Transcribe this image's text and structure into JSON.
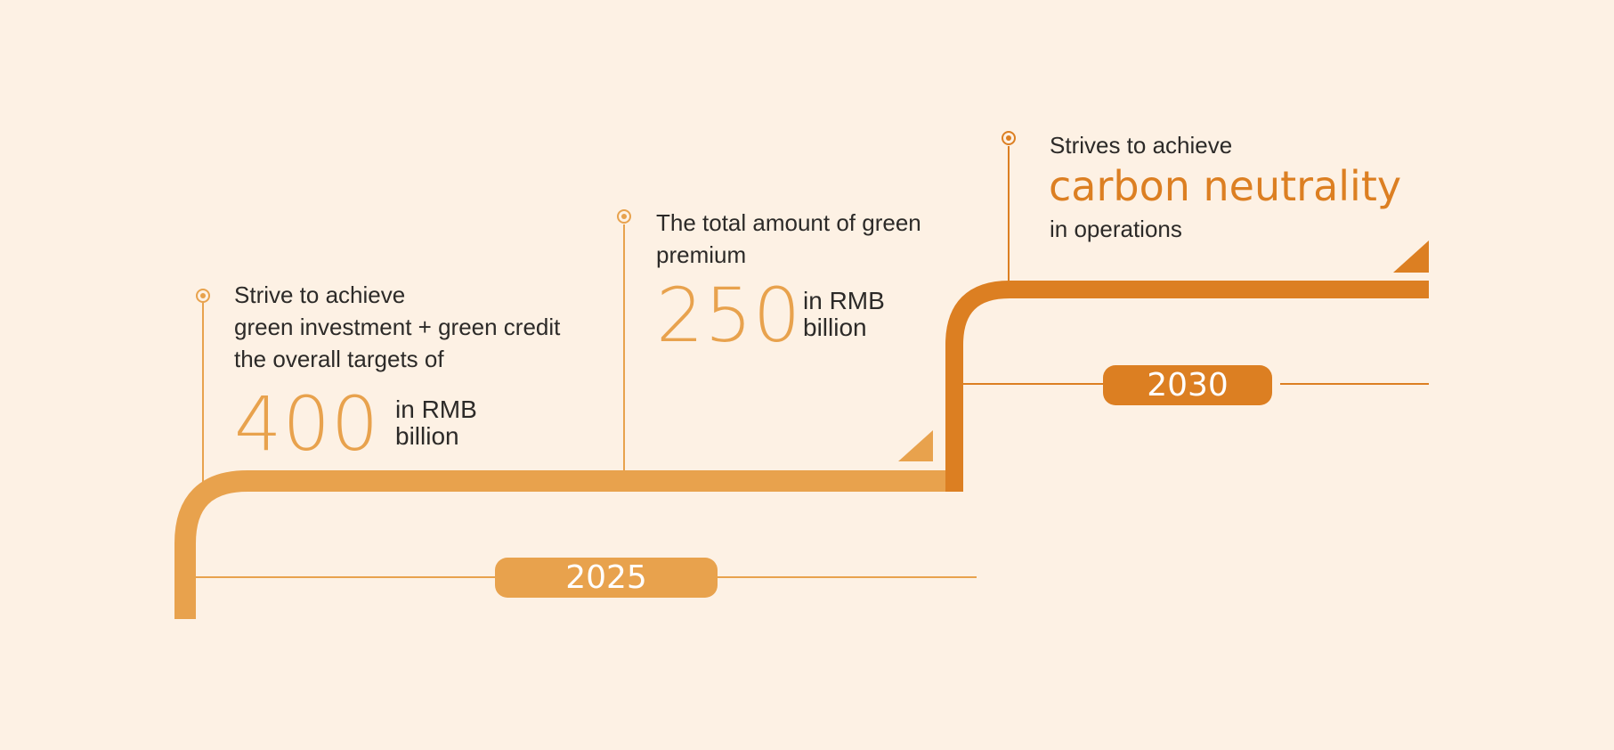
{
  "colors": {
    "background": "#fdf1e4",
    "light_orange": "#e8a24d",
    "dark_orange": "#dc7f22",
    "text": "#2c2a28"
  },
  "milestones": [
    {
      "year": "2025",
      "intro_lines": [
        "Strive to achieve",
        "green investment + green credit",
        "the overall targets of"
      ],
      "value": "400",
      "unit_line1": "in RMB",
      "unit_line2": "billion"
    },
    {
      "intro_lines": [
        "The total amount of green",
        "premium"
      ],
      "value": "250",
      "unit_line1": "in RMB",
      "unit_line2": "billion"
    },
    {
      "year": "2030",
      "intro": "Strives to achieve",
      "highlight": "carbon neutrality",
      "outro": "in operations"
    }
  ]
}
